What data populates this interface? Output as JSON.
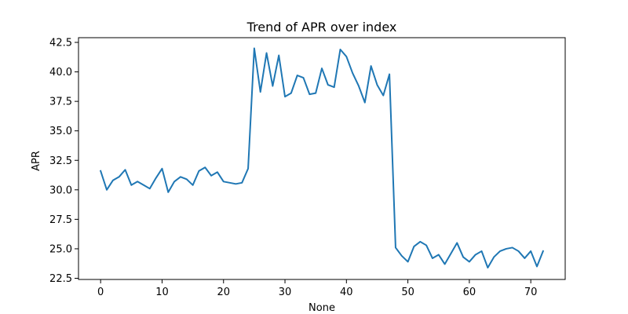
{
  "chart_data": {
    "type": "line",
    "title": "Trend of APR over index",
    "xlabel": "None",
    "ylabel": "APR",
    "xlim": [
      -3.6,
      75.6
    ],
    "ylim": [
      22.4,
      42.9
    ],
    "xticks": [
      0,
      10,
      20,
      30,
      40,
      50,
      60,
      70
    ],
    "xtick_labels": [
      "0",
      "10",
      "20",
      "30",
      "40",
      "50",
      "60",
      "70"
    ],
    "yticks": [
      22.5,
      25.0,
      27.5,
      30.0,
      32.5,
      35.0,
      37.5,
      40.0,
      42.5
    ],
    "ytick_labels": [
      "22.5",
      "25.0",
      "27.5",
      "30.0",
      "32.5",
      "35.0",
      "37.5",
      "40.0",
      "42.5"
    ],
    "grid": false,
    "series": [
      {
        "color": "#1f77b4",
        "x": [
          0,
          1,
          2,
          3,
          4,
          5,
          6,
          7,
          8,
          9,
          10,
          11,
          12,
          13,
          14,
          15,
          16,
          17,
          18,
          19,
          20,
          21,
          22,
          23,
          24,
          25,
          26,
          27,
          28,
          29,
          30,
          31,
          32,
          33,
          34,
          35,
          36,
          37,
          38,
          39,
          40,
          41,
          42,
          43,
          44,
          45,
          46,
          47,
          48,
          49,
          50,
          51,
          52,
          53,
          54,
          55,
          56,
          57,
          58,
          59,
          60,
          61,
          62,
          63,
          64,
          65,
          66,
          67,
          68,
          69,
          70,
          71,
          72
        ],
        "values": [
          31.6,
          30.0,
          30.8,
          31.1,
          31.7,
          30.4,
          30.7,
          30.4,
          30.1,
          31.0,
          31.8,
          29.8,
          30.7,
          31.1,
          30.9,
          30.4,
          31.6,
          31.9,
          31.2,
          31.5,
          30.7,
          30.6,
          30.5,
          30.6,
          31.8,
          42.0,
          38.3,
          41.6,
          38.8,
          41.4,
          37.9,
          38.2,
          39.7,
          39.5,
          38.1,
          38.2,
          40.3,
          38.9,
          38.7,
          41.9,
          41.3,
          39.9,
          38.8,
          37.4,
          40.5,
          38.9,
          38.0,
          39.8,
          25.1,
          24.4,
          23.9,
          25.2,
          25.6,
          25.3,
          24.2,
          24.5,
          23.7,
          24.6,
          25.5,
          24.3,
          23.9,
          24.5,
          24.8,
          23.4,
          24.3,
          24.8,
          25.0,
          25.1,
          24.8,
          24.2,
          24.8,
          23.5,
          24.8
        ]
      }
    ]
  }
}
